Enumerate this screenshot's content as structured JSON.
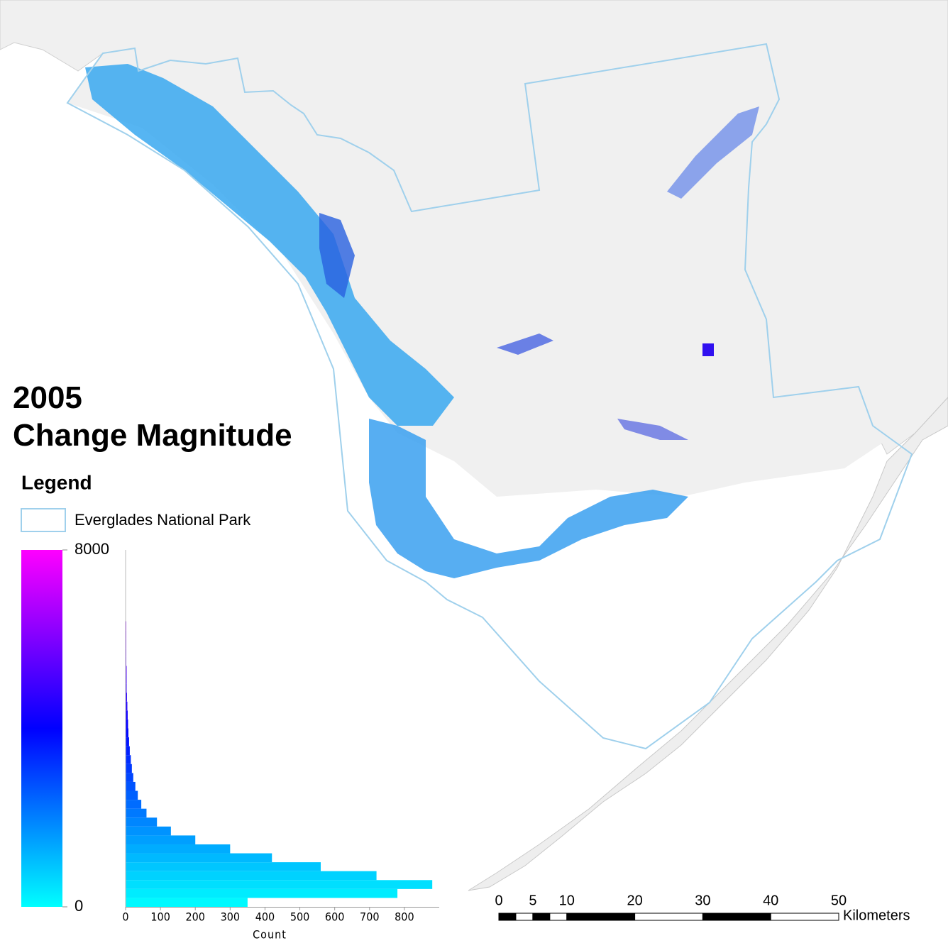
{
  "title": "2005",
  "subtitle": "Change Magnitude",
  "legend": {
    "title": "Legend",
    "items": [
      "Everglades National Park"
    ]
  },
  "colorbar": {
    "lim": [
      0,
      8000
    ],
    "ticks": [
      0,
      8000
    ],
    "colors": [
      "#00ffff",
      "#0000ff",
      "#ff00ff"
    ]
  },
  "chart_data": {
    "type": "histogram",
    "orientation": "horizontal",
    "xlabel": "Count",
    "bins": [
      0,
      200,
      400,
      600,
      800,
      1000,
      1200,
      1400,
      1600,
      1800,
      2000,
      2200,
      2400,
      2600,
      2800,
      3000,
      3200,
      3400,
      3600,
      3800,
      4000,
      4200,
      4400,
      4600,
      4800,
      5000,
      5200,
      5400,
      5600,
      5800,
      6000,
      6200,
      6400,
      6600,
      6800,
      7000,
      7200,
      7400,
      7600,
      7800,
      8000
    ],
    "values": [
      350,
      780,
      880,
      720,
      560,
      420,
      300,
      200,
      130,
      90,
      60,
      45,
      35,
      28,
      22,
      18,
      15,
      12,
      10,
      8,
      7,
      6,
      5,
      4,
      3,
      3,
      3,
      2,
      2,
      2,
      2,
      2,
      1,
      1,
      1,
      1,
      1,
      1,
      0,
      0
    ],
    "xlim": [
      0,
      900
    ],
    "xticks": [
      0,
      100,
      200,
      300,
      400,
      500,
      600,
      700,
      800
    ],
    "ylim": [
      0,
      8000
    ]
  },
  "scale_bar": {
    "ticks": [
      0,
      5,
      10,
      20,
      30,
      40,
      50
    ],
    "unit": "Kilometers"
  }
}
